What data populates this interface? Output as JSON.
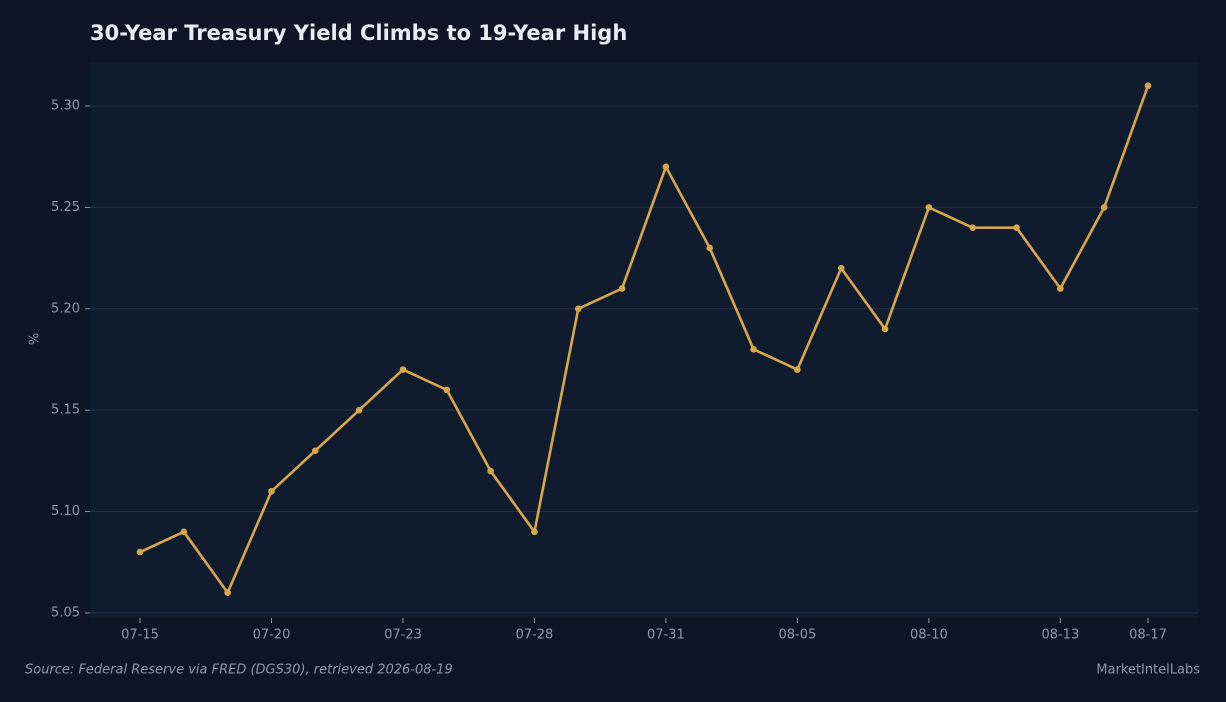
{
  "chart_data": {
    "type": "line",
    "title": "30-Year Treasury Yield Climbs to 19-Year High",
    "y_label": "%",
    "source": "Source: Federal Reserve via FRED (DGS30), retrieved 2026-08-19",
    "brand": "MarketIntelLabs",
    "categories": [
      "07-15",
      null,
      null,
      "07-20",
      null,
      null,
      "07-23",
      null,
      null,
      "07-28",
      null,
      null,
      "07-31",
      null,
      null,
      "08-05",
      null,
      null,
      "08-10",
      null,
      null,
      "08-13",
      null,
      "08-17"
    ],
    "series": [
      {
        "name": "30-Year Treasury Yield",
        "color": "#d6a84c",
        "values": [
          5.08,
          5.09,
          5.06,
          5.11,
          5.13,
          5.15,
          5.17,
          5.16,
          5.12,
          5.09,
          5.2,
          5.21,
          5.27,
          5.23,
          5.18,
          5.17,
          5.22,
          5.19,
          5.25,
          5.24,
          5.24,
          5.21,
          5.25,
          5.31
        ]
      }
    ],
    "ylim": [
      5.0475,
      5.3217
    ],
    "yticks": [
      5.05,
      {
        "value": 5.1,
        "label": "5.10"
      },
      5.15,
      {
        "value": 5.2,
        "label": "5.20"
      },
      5.25,
      {
        "value": 5.3,
        "label": "5.30"
      }
    ],
    "grid": true
  }
}
